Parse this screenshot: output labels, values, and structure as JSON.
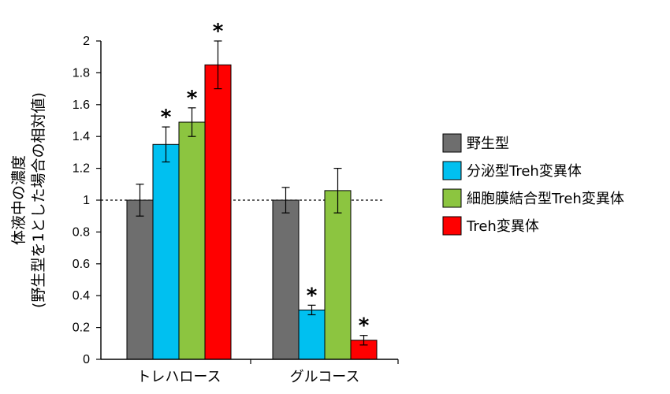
{
  "chart_data": {
    "type": "bar",
    "ylabel_line1": "体液中の濃度",
    "ylabel_line2": "(野生型を1とした場合の相対値)",
    "ylim": [
      0,
      2
    ],
    "yticks": [
      "0",
      "0.2",
      "0.4",
      "0.6",
      "0.8",
      "1",
      "1.2",
      "1.4",
      "1.6",
      "1.8",
      "2"
    ],
    "reference_line": 1,
    "categories": [
      "トレハロース",
      "グルコース"
    ],
    "significance_marker": "*",
    "legend_position": "right",
    "series": [
      {
        "name": "野生型",
        "color": "#6e6e6e",
        "values": [
          1.0,
          1.0
        ],
        "errors": [
          0.1,
          0.08
        ],
        "significant": [
          false,
          false
        ]
      },
      {
        "name": "分泌型Treh変異体",
        "color": "#00c0f0",
        "values": [
          1.35,
          0.31
        ],
        "errors": [
          0.11,
          0.03
        ],
        "significant": [
          true,
          true
        ]
      },
      {
        "name": "細胞膜結合型Treh変異体",
        "color": "#8cc540",
        "values": [
          1.49,
          1.06
        ],
        "errors": [
          0.09,
          0.14
        ],
        "significant": [
          true,
          false
        ]
      },
      {
        "name": "Treh変異体",
        "color": "#ff0000",
        "values": [
          1.85,
          0.12
        ],
        "errors": [
          0.15,
          0.03
        ],
        "significant": [
          true,
          true
        ]
      }
    ]
  }
}
